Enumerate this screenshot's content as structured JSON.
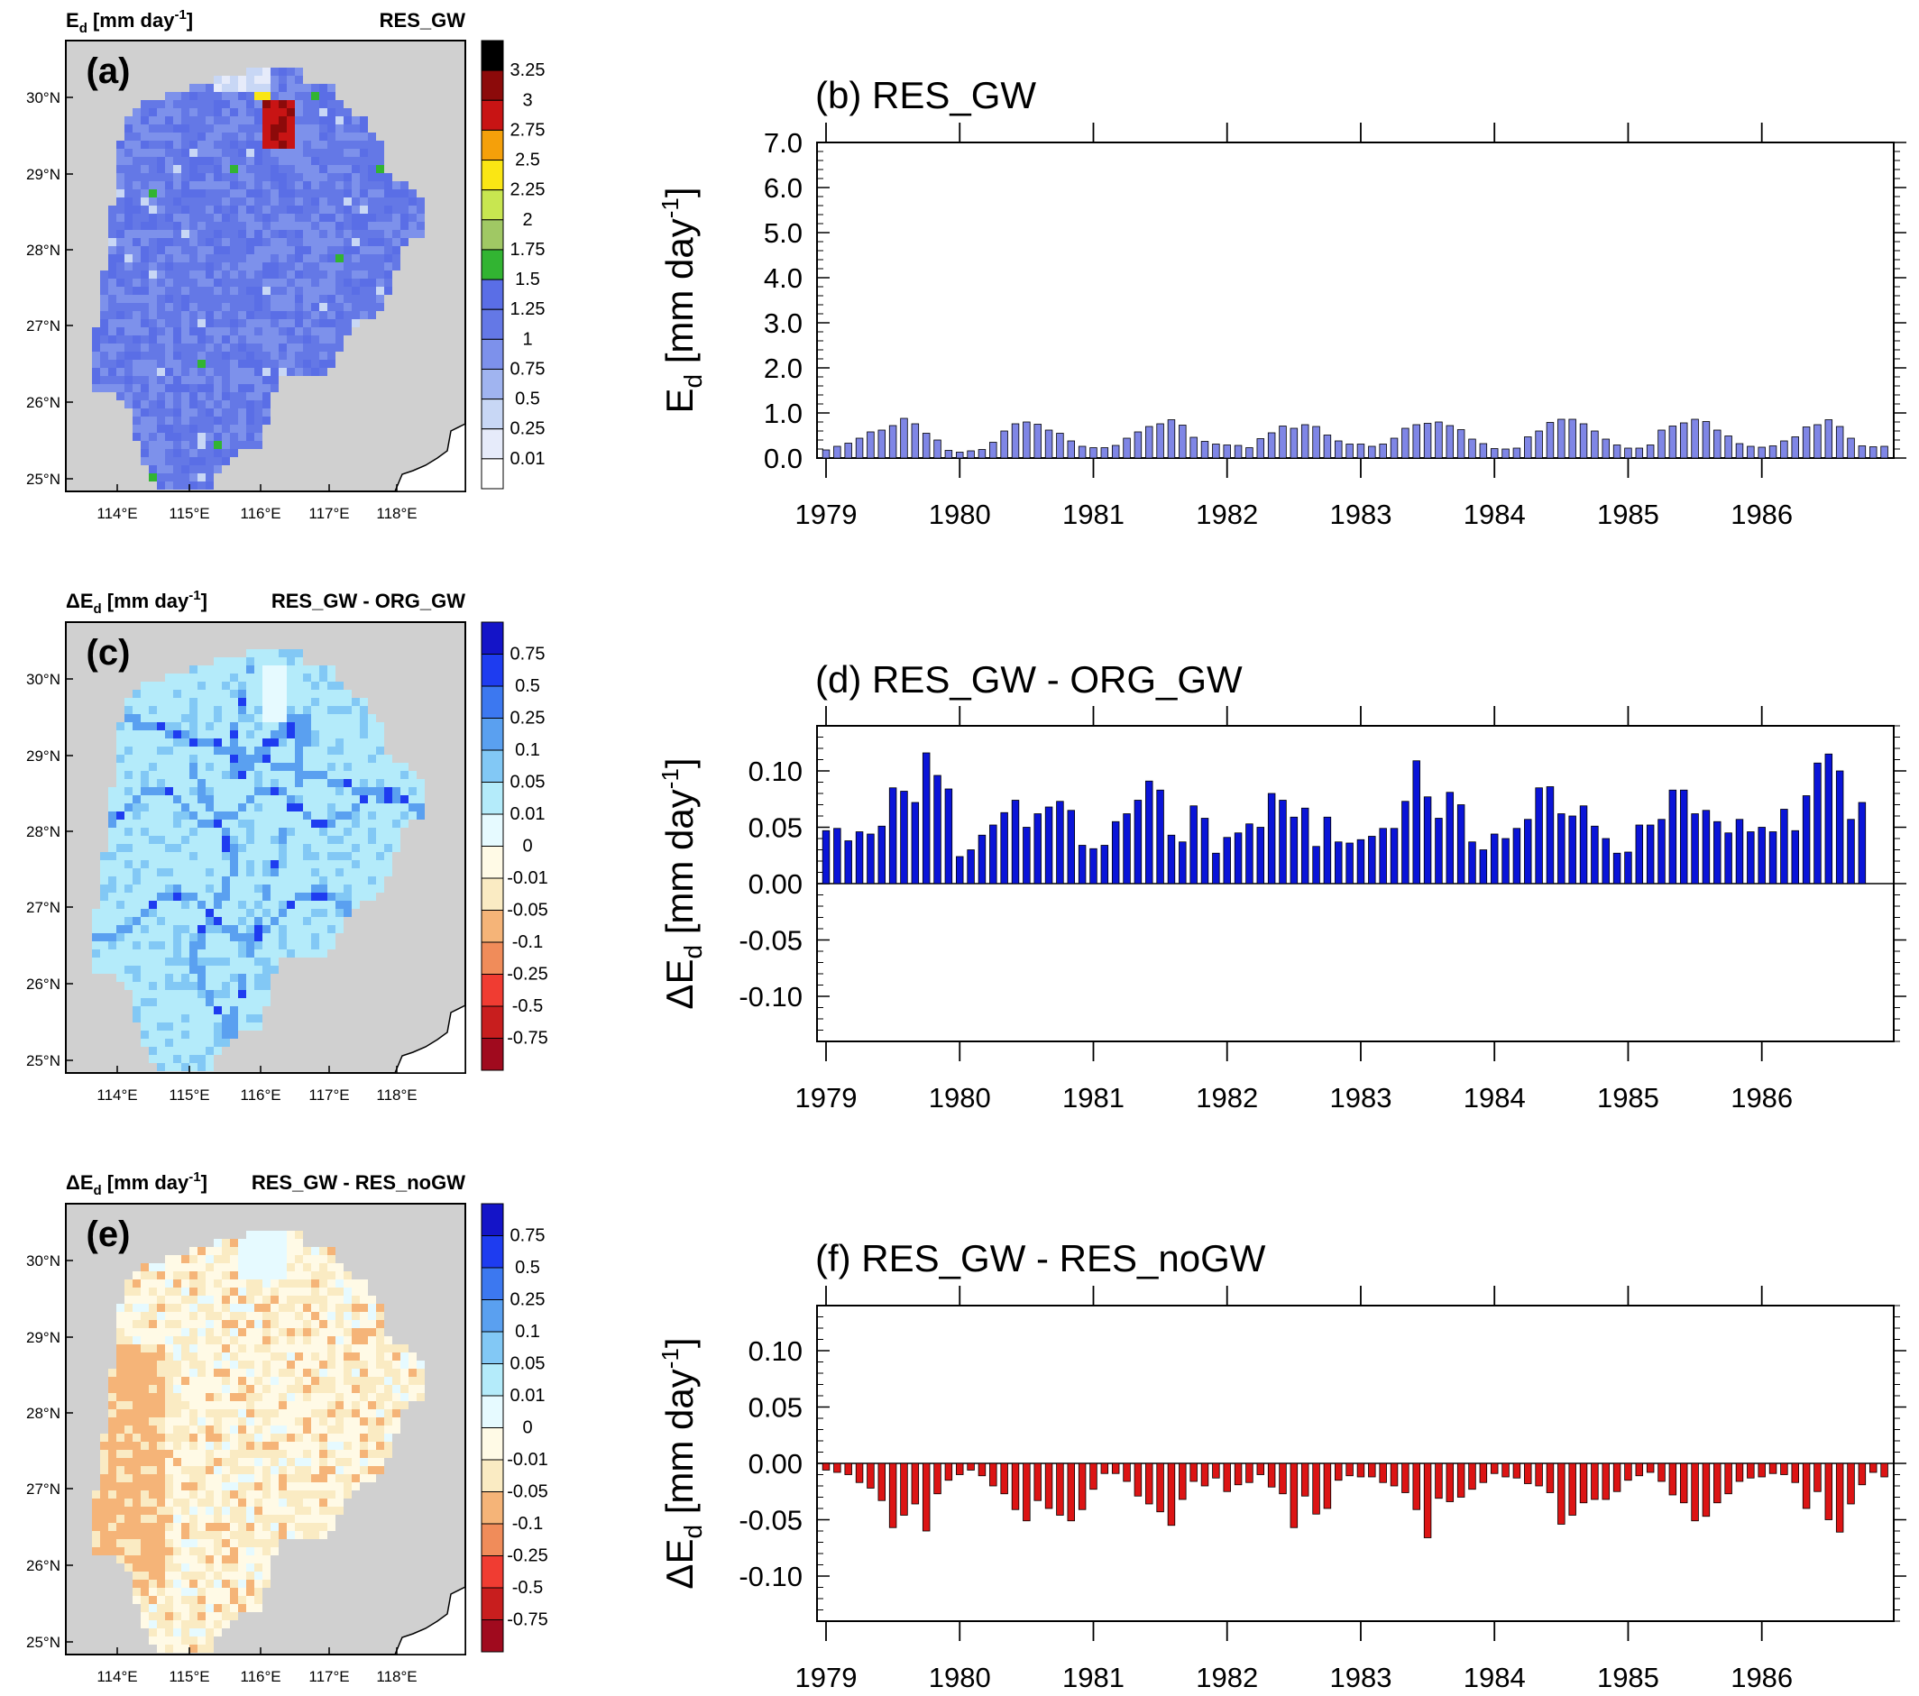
{
  "colors": {
    "land": "#d0d0d0",
    "coast": "#000000",
    "bar_b": "#7f86e6",
    "bar_d": "#0a14d8",
    "bar_f": "#dc1414"
  },
  "map_axes": {
    "lat_ticks": [
      "30°N",
      "29°N",
      "28°N",
      "27°N",
      "26°N",
      "25°N"
    ],
    "lon_ticks": [
      "114°E",
      "115°E",
      "116°E",
      "117°E",
      "118°E"
    ]
  },
  "panels": {
    "a": {
      "letter": "(a)",
      "left_title_main": "E",
      "left_title_sub": "d",
      "left_title_unit": " [mm day",
      "left_title_sup": "-1",
      "left_title_end": "]",
      "right_title": "RES_GW"
    },
    "c": {
      "letter": "(c)",
      "left_title_main": "ΔE",
      "left_title_sub": "d",
      "left_title_unit": " [mm day",
      "left_title_sup": "-1",
      "left_title_end": "]",
      "right_title": "RES_GW - ORG_GW"
    },
    "e": {
      "letter": "(e)",
      "left_title_main": "ΔE",
      "left_title_sub": "d",
      "left_title_unit": " [mm day",
      "left_title_sup": "-1",
      "left_title_end": "]",
      "right_title": "RES_GW - RES_noGW"
    }
  },
  "colorbars": {
    "a": {
      "labels": [
        "3.25",
        "3",
        "2.75",
        "2.5",
        "2.25",
        "2",
        "1.75",
        "1.5",
        "1.25",
        "1",
        "0.75",
        "0.5",
        "0.25",
        "0.01"
      ],
      "colors": [
        "#000000",
        "#8c0a0a",
        "#c81414",
        "#f5a00a",
        "#fae614",
        "#c8e650",
        "#a0c864",
        "#32b432",
        "#5a6ee6",
        "#6478e6",
        "#7d91eb",
        "#a0b4f0",
        "#c8d7f5",
        "#e6ebfa",
        "#ffffff"
      ]
    },
    "diff": {
      "labels": [
        "0.75",
        "0.5",
        "0.25",
        "0.1",
        "0.05",
        "0.01",
        "0",
        "-0.01",
        "-0.05",
        "-0.1",
        "-0.25",
        "-0.5",
        "-0.75"
      ],
      "colors": [
        "#1414c8",
        "#1e3cf0",
        "#3c78f0",
        "#5aa0f0",
        "#82c8f5",
        "#b4ebfa",
        "#e6faff",
        "#fffae6",
        "#faebc3",
        "#f5b478",
        "#f08c5a",
        "#f03c32",
        "#c81e1e",
        "#a00a1e"
      ]
    }
  },
  "chart_data": [
    {
      "type": "bar",
      "panel": "(b)",
      "title": "(b) RES_GW",
      "ylabel_main": "E",
      "ylabel_sub": "d",
      "ylabel_unit": " [mm day",
      "ylabel_sup": "-1",
      "ylabel_end": "]",
      "ylim": [
        0,
        7
      ],
      "yticks": [
        "0.0",
        "1.0",
        "2.0",
        "3.0",
        "4.0",
        "5.0",
        "6.0",
        "7.0"
      ],
      "xticks": [
        "1979",
        "1980",
        "1981",
        "1982",
        "1983",
        "1984",
        "1985",
        "1986"
      ],
      "x_start": 1979,
      "x_end": 1986.92,
      "values": [
        0.18,
        0.26,
        0.33,
        0.44,
        0.58,
        0.62,
        0.72,
        0.88,
        0.76,
        0.55,
        0.4,
        0.17,
        0.13,
        0.16,
        0.19,
        0.35,
        0.6,
        0.76,
        0.8,
        0.75,
        0.62,
        0.55,
        0.38,
        0.26,
        0.23,
        0.23,
        0.28,
        0.44,
        0.58,
        0.7,
        0.76,
        0.85,
        0.73,
        0.46,
        0.37,
        0.31,
        0.29,
        0.28,
        0.23,
        0.43,
        0.56,
        0.71,
        0.66,
        0.74,
        0.7,
        0.51,
        0.38,
        0.31,
        0.31,
        0.26,
        0.31,
        0.44,
        0.66,
        0.74,
        0.77,
        0.8,
        0.72,
        0.63,
        0.42,
        0.32,
        0.21,
        0.2,
        0.22,
        0.47,
        0.6,
        0.79,
        0.86,
        0.86,
        0.76,
        0.6,
        0.42,
        0.29,
        0.22,
        0.22,
        0.29,
        0.62,
        0.71,
        0.78,
        0.86,
        0.81,
        0.62,
        0.49,
        0.32,
        0.26,
        0.24,
        0.27,
        0.38,
        0.47,
        0.69,
        0.74,
        0.85,
        0.7,
        0.44,
        0.27,
        0.25,
        0.26
      ]
    },
    {
      "type": "bar",
      "panel": "(d)",
      "title": "(d) RES_GW - ORG_GW",
      "ylabel_main": "ΔE",
      "ylabel_sub": "d",
      "ylabel_unit": " [mm day",
      "ylabel_sup": "-1",
      "ylabel_end": "]",
      "ylim": [
        -0.14,
        0.14
      ],
      "yticks": [
        "-0.10",
        "-0.05",
        "0.00",
        "0.05",
        "0.10"
      ],
      "ytick_values": [
        -0.1,
        -0.05,
        0.0,
        0.05,
        0.1
      ],
      "xticks": [
        "1979",
        "1980",
        "1981",
        "1982",
        "1983",
        "1984",
        "1985",
        "1986"
      ],
      "x_start": 1979,
      "x_end": 1986.92,
      "values": [
        0.047,
        0.049,
        0.038,
        0.046,
        0.044,
        0.051,
        0.085,
        0.082,
        0.072,
        0.116,
        0.096,
        0.084,
        0.024,
        0.03,
        0.043,
        0.052,
        0.063,
        0.074,
        0.05,
        0.062,
        0.068,
        0.073,
        0.065,
        0.034,
        0.031,
        0.034,
        0.055,
        0.062,
        0.074,
        0.091,
        0.083,
        0.043,
        0.037,
        0.069,
        0.058,
        0.027,
        0.041,
        0.045,
        0.053,
        0.05,
        0.08,
        0.074,
        0.059,
        0.067,
        0.033,
        0.059,
        0.037,
        0.036,
        0.039,
        0.042,
        0.049,
        0.049,
        0.073,
        0.109,
        0.077,
        0.058,
        0.081,
        0.07,
        0.037,
        0.03,
        0.044,
        0.04,
        0.049,
        0.057,
        0.085,
        0.086,
        0.062,
        0.06,
        0.069,
        0.051,
        0.04,
        0.027,
        0.028,
        0.052,
        0.052,
        0.057,
        0.083,
        0.083,
        0.062,
        0.065,
        0.055,
        0.045,
        0.057,
        0.046,
        0.05,
        0.046,
        0.066,
        0.047,
        0.078,
        0.107,
        0.115,
        0.1,
        0.057,
        0.072
      ]
    },
    {
      "type": "bar",
      "panel": "(f)",
      "title": "(f) RES_GW - RES_noGW",
      "ylabel_main": "ΔE",
      "ylabel_sub": "d",
      "ylabel_unit": " [mm day",
      "ylabel_sup": "-1",
      "ylabel_end": "]",
      "ylim": [
        -0.14,
        0.14
      ],
      "yticks": [
        "-0.10",
        "-0.05",
        "0.00",
        "0.05",
        "0.10"
      ],
      "ytick_values": [
        -0.1,
        -0.05,
        0.0,
        0.05,
        0.1
      ],
      "xticks": [
        "1979",
        "1980",
        "1981",
        "1982",
        "1983",
        "1984",
        "1985",
        "1986"
      ],
      "x_start": 1979,
      "x_end": 1986.92,
      "values": [
        -0.006,
        -0.008,
        -0.01,
        -0.017,
        -0.022,
        -0.033,
        -0.057,
        -0.046,
        -0.036,
        -0.06,
        -0.027,
        -0.015,
        -0.01,
        -0.006,
        -0.011,
        -0.02,
        -0.027,
        -0.041,
        -0.051,
        -0.033,
        -0.04,
        -0.046,
        -0.051,
        -0.041,
        -0.023,
        -0.009,
        -0.009,
        -0.016,
        -0.029,
        -0.036,
        -0.043,
        -0.055,
        -0.032,
        -0.016,
        -0.02,
        -0.013,
        -0.025,
        -0.019,
        -0.017,
        -0.01,
        -0.021,
        -0.027,
        -0.057,
        -0.029,
        -0.045,
        -0.04,
        -0.015,
        -0.011,
        -0.012,
        -0.012,
        -0.017,
        -0.02,
        -0.026,
        -0.041,
        -0.066,
        -0.031,
        -0.034,
        -0.03,
        -0.023,
        -0.017,
        -0.009,
        -0.012,
        -0.013,
        -0.018,
        -0.02,
        -0.026,
        -0.054,
        -0.046,
        -0.035,
        -0.032,
        -0.032,
        -0.025,
        -0.015,
        -0.011,
        -0.008,
        -0.016,
        -0.028,
        -0.035,
        -0.051,
        -0.047,
        -0.035,
        -0.027,
        -0.016,
        -0.013,
        -0.012,
        -0.009,
        -0.01,
        -0.017,
        -0.04,
        -0.025,
        -0.05,
        -0.061,
        -0.036,
        -0.019,
        -0.008,
        -0.012
      ]
    }
  ]
}
